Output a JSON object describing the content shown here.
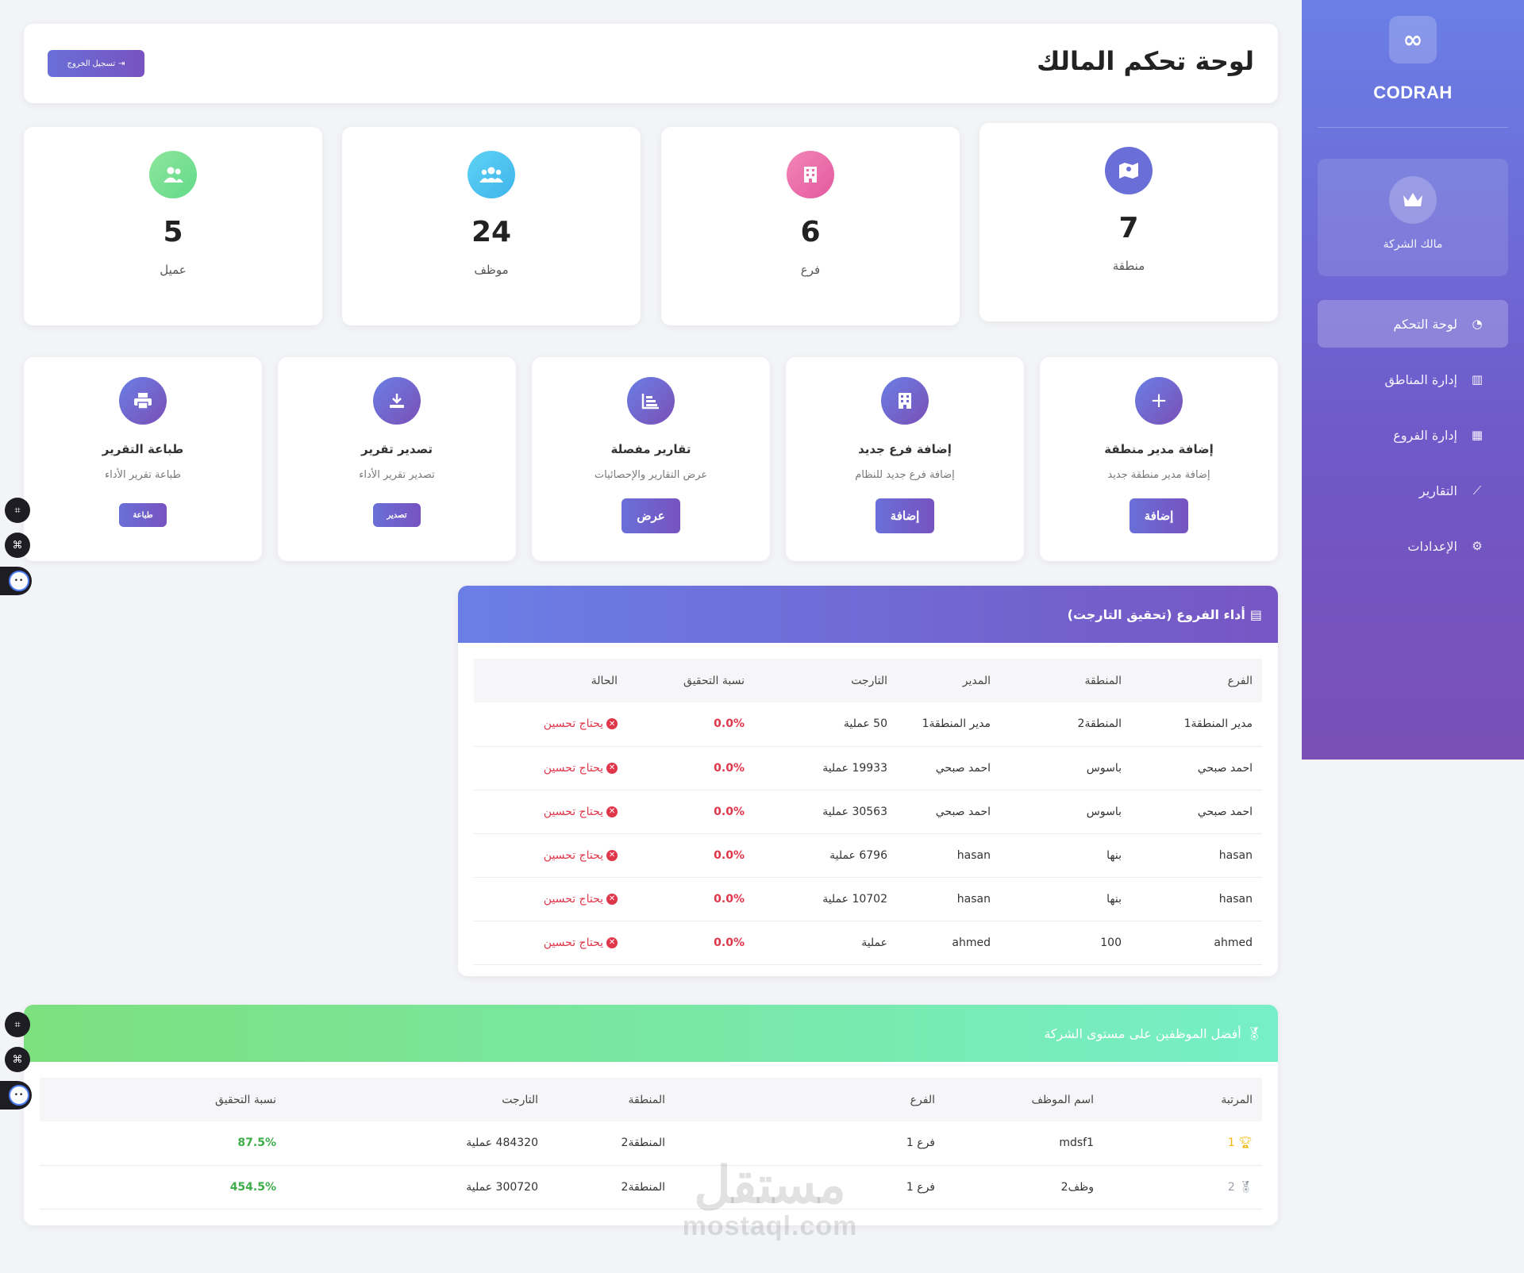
{
  "sidebar": {
    "logo_glyph": "∞",
    "brand": "CODRAH",
    "role": {
      "icon": "crown-icon",
      "label": "مالك الشركة"
    },
    "items": [
      {
        "label": "لوحة التحكم",
        "icon": "dashboard-icon",
        "active": true
      },
      {
        "label": "إدارة المناطق",
        "icon": "map-icon",
        "active": false
      },
      {
        "label": "إدارة الفروع",
        "icon": "building-icon",
        "active": false
      },
      {
        "label": "التقارير",
        "icon": "chart-line-icon",
        "active": false
      },
      {
        "label": "الإعدادات",
        "icon": "gear-icon",
        "active": false
      }
    ]
  },
  "header": {
    "title": "لوحة تحكم المالك",
    "logout_label": "تسجيل الخروج"
  },
  "stats": [
    {
      "value": "7",
      "label": "منطقة",
      "icon": "map-icon",
      "color": "#6a6fd8"
    },
    {
      "value": "6",
      "label": "فرع",
      "icon": "building-icon",
      "color": "#ee6fa8"
    },
    {
      "value": "24",
      "label": "موظف",
      "icon": "users-icon",
      "color": "#4fc3f0"
    },
    {
      "value": "5",
      "label": "عميل",
      "icon": "users-icon",
      "color": "#7fdf93"
    }
  ],
  "actions": [
    {
      "title": "إضافة مدير منطقة",
      "desc": "إضافة مدير منطقة جديد",
      "button": "إضافة",
      "icon": "plus-icon"
    },
    {
      "title": "إضافة فرع جديد",
      "desc": "إضافة فرع جديد للنظام",
      "button": "إضافة",
      "icon": "building-icon"
    },
    {
      "title": "تقارير مفصلة",
      "desc": "عرض التقارير والإحصائيات",
      "button": "عرض",
      "icon": "chart-icon"
    },
    {
      "title": "تصدير تقرير",
      "desc": "تصدير تقرير الأداء",
      "button": "تصدير",
      "icon": "download-icon"
    },
    {
      "title": "طباعة التقرير",
      "desc": "طباعة تقرير الأداء",
      "button": "طباعة",
      "icon": "print-icon"
    }
  ],
  "branches_panel": {
    "title": "أداء الفروع (تحقيق التارجت)",
    "columns": [
      "الفرع",
      "المنطقة",
      "المدير",
      "التارجت",
      "نسبة التحقيق",
      "الحالة"
    ],
    "rows": [
      [
        "مدير المنطقة1",
        "المنطقة2",
        "مدير المنطقة1",
        "50 عملية",
        "0.0%",
        "يحتاج تحسين"
      ],
      [
        "احمد صبحي",
        "باسوس",
        "احمد صبحي",
        "19933 عملية",
        "0.0%",
        "يحتاج تحسين"
      ],
      [
        "احمد صبحي",
        "باسوس",
        "احمد صبحي",
        "30563 عملية",
        "0.0%",
        "يحتاج تحسين"
      ],
      [
        "hasan",
        "بنها",
        "hasan",
        "6796 عملية",
        "0.0%",
        "يحتاج تحسين"
      ],
      [
        "hasan",
        "بنها",
        "hasan",
        "10702 عملية",
        "0.0%",
        "يحتاج تحسين"
      ],
      [
        "ahmed",
        "100",
        "ahmed",
        "عملية",
        "0.0%",
        "يحتاج تحسين"
      ]
    ]
  },
  "employees_panel": {
    "title": "أفضل الموظفين على مستوى الشركة",
    "columns": [
      "المرتبة",
      "اسم الموظف",
      "الفرع",
      "المنطقة",
      "التارجت",
      "نسبة التحقيق"
    ],
    "rows": [
      [
        "1",
        "mdsf1",
        "فرع 1",
        "المنطقة2",
        "484320 عملية",
        "87.5%"
      ],
      [
        "2",
        "وظف2",
        "فرع 1",
        "المنطقة2",
        "300720 عملية",
        "454.5%"
      ]
    ]
  },
  "watermark": {
    "big": "مستقل",
    "small": "mostaql.com"
  }
}
